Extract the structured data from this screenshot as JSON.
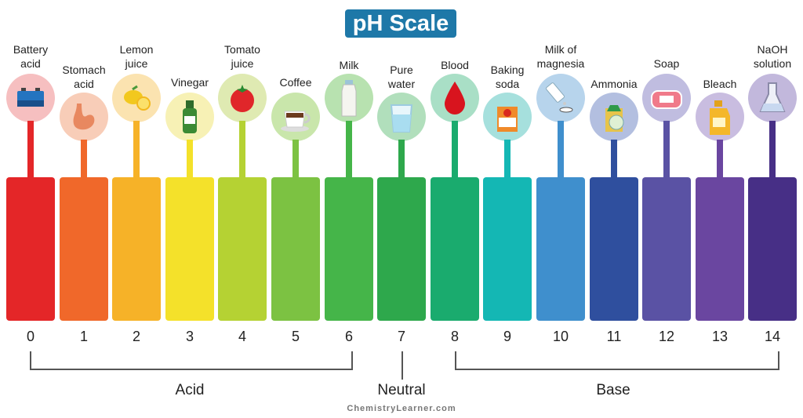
{
  "title": "pH Scale",
  "items": [
    {
      "ph": "0",
      "label1": "Battery",
      "label2": "acid",
      "icon": "battery-icon",
      "color": "#e42628"
    },
    {
      "ph": "1",
      "label1": "Stomach",
      "label2": "acid",
      "icon": "stomach-icon",
      "color": "#f0682a"
    },
    {
      "ph": "2",
      "label1": "Lemon",
      "label2": "juice",
      "icon": "lemon-icon",
      "color": "#f6b228"
    },
    {
      "ph": "3",
      "label1": "Vinegar",
      "label2": "",
      "icon": "vinegar-bottle-icon",
      "color": "#f4e12a"
    },
    {
      "ph": "4",
      "label1": "Tomato",
      "label2": "juice",
      "icon": "tomato-icon",
      "color": "#b5d233"
    },
    {
      "ph": "5",
      "label1": "Coffee",
      "label2": "",
      "icon": "coffee-cup-icon",
      "color": "#7cc242"
    },
    {
      "ph": "6",
      "label1": "Milk",
      "label2": "",
      "icon": "milk-bottle-icon",
      "color": "#45b549"
    },
    {
      "ph": "7",
      "label1": "Pure",
      "label2": "water",
      "icon": "water-glass-icon",
      "color": "#2ea84c"
    },
    {
      "ph": "8",
      "label1": "Blood",
      "label2": "",
      "icon": "blood-drop-icon",
      "color": "#1aab6e"
    },
    {
      "ph": "9",
      "label1": "Baking",
      "label2": "soda",
      "icon": "baking-soda-icon",
      "color": "#14b7b4"
    },
    {
      "ph": "10",
      "label1": "Milk of",
      "label2": "magnesia",
      "icon": "medicine-icon",
      "color": "#3f8fcd"
    },
    {
      "ph": "11",
      "label1": "Ammonia",
      "label2": "",
      "icon": "ammonia-icon",
      "color": "#2f4f9e"
    },
    {
      "ph": "12",
      "label1": "Soap",
      "label2": "",
      "icon": "soap-icon",
      "color": "#5a52a4"
    },
    {
      "ph": "13",
      "label1": "Bleach",
      "label2": "",
      "icon": "bleach-bottle-icon",
      "color": "#6a46a0"
    },
    {
      "ph": "14",
      "label1": "NaOH",
      "label2": "solution",
      "icon": "flask-icon",
      "color": "#472f86"
    }
  ],
  "groups": {
    "acid": "Acid",
    "neutral": "Neutral",
    "base": "Base"
  },
  "credit": "ChemistryLearner.com"
}
